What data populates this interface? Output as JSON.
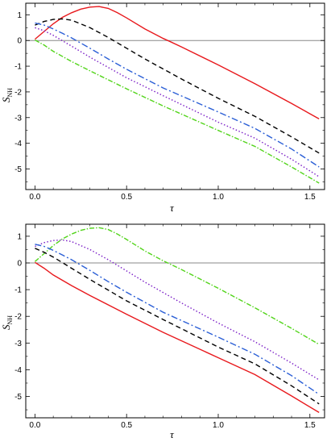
{
  "chart_data": [
    {
      "type": "line",
      "title": "",
      "xlabel": "τ",
      "ylabel": {
        "main": "S",
        "sub": "NH"
      },
      "xlim": [
        -0.05,
        1.58
      ],
      "ylim": [
        -5.8,
        1.45
      ],
      "xticks": [
        0.0,
        0.5,
        1.0,
        1.5
      ],
      "xtick_labels": [
        "0.0",
        "0.5",
        "1.0",
        "1.5"
      ],
      "yticks": [
        1,
        0,
        -1,
        -2,
        -3,
        -4,
        -5
      ],
      "ytick_labels": [
        "1",
        "0",
        "-1",
        "-2",
        "-3",
        "-4",
        "-5"
      ],
      "zero_line": true,
      "grid": false,
      "legend": "none",
      "series": [
        {
          "color": "#e8191d",
          "dash": "solid",
          "points": [
            [
              0,
              0.05
            ],
            [
              0.05,
              0.35
            ],
            [
              0.1,
              0.65
            ],
            [
              0.15,
              0.9
            ],
            [
              0.2,
              1.08
            ],
            [
              0.25,
              1.22
            ],
            [
              0.3,
              1.3
            ],
            [
              0.35,
              1.32
            ],
            [
              0.4,
              1.25
            ],
            [
              0.45,
              1.08
            ],
            [
              0.5,
              0.88
            ],
            [
              0.6,
              0.45
            ],
            [
              0.7,
              0.08
            ],
            [
              0.74,
              -0.05
            ],
            [
              0.8,
              -0.25
            ],
            [
              1.0,
              -0.95
            ],
            [
              1.2,
              -1.68
            ],
            [
              1.4,
              -2.45
            ],
            [
              1.55,
              -3.05
            ]
          ]
        },
        {
          "color": "#000000",
          "dash": "6,4",
          "points": [
            [
              0,
              0.6
            ],
            [
              0.05,
              0.74
            ],
            [
              0.1,
              0.82
            ],
            [
              0.15,
              0.84
            ],
            [
              0.2,
              0.79
            ],
            [
              0.3,
              0.5
            ],
            [
              0.4,
              0.12
            ],
            [
              0.5,
              -0.3
            ],
            [
              0.6,
              -0.72
            ],
            [
              0.8,
              -1.5
            ],
            [
              1.0,
              -2.25
            ],
            [
              1.2,
              -2.95
            ],
            [
              1.4,
              -3.75
            ],
            [
              1.55,
              -4.38
            ]
          ]
        },
        {
          "color": "#2b5fd6",
          "dash": "8,3,2,3",
          "points": [
            [
              0,
              0.68
            ],
            [
              0.05,
              0.6
            ],
            [
              0.1,
              0.45
            ],
            [
              0.15,
              0.28
            ],
            [
              0.2,
              0.1
            ],
            [
              0.3,
              -0.3
            ],
            [
              0.4,
              -0.72
            ],
            [
              0.5,
              -1.12
            ],
            [
              0.7,
              -1.85
            ],
            [
              1.0,
              -2.78
            ],
            [
              1.2,
              -3.42
            ],
            [
              1.4,
              -4.22
            ],
            [
              1.55,
              -4.92
            ]
          ]
        },
        {
          "color": "#7b1fc7",
          "dash": "1.5,2.5",
          "points": [
            [
              0,
              0.5
            ],
            [
              0.05,
              0.38
            ],
            [
              0.1,
              0.2
            ],
            [
              0.2,
              -0.22
            ],
            [
              0.3,
              -0.65
            ],
            [
              0.5,
              -1.45
            ],
            [
              0.7,
              -2.15
            ],
            [
              1.0,
              -3.18
            ],
            [
              1.2,
              -3.8
            ],
            [
              1.4,
              -4.62
            ],
            [
              1.55,
              -5.3
            ]
          ]
        },
        {
          "color": "#52d41a",
          "dash": "6,2,1.5,2",
          "points": [
            [
              0,
              0.02
            ],
            [
              0.05,
              -0.18
            ],
            [
              0.1,
              -0.42
            ],
            [
              0.2,
              -0.82
            ],
            [
              0.3,
              -1.18
            ],
            [
              0.5,
              -1.88
            ],
            [
              0.7,
              -2.55
            ],
            [
              1.0,
              -3.5
            ],
            [
              1.2,
              -4.12
            ],
            [
              1.4,
              -4.92
            ],
            [
              1.55,
              -5.55
            ]
          ]
        }
      ]
    },
    {
      "type": "line",
      "title": "",
      "xlabel": "τ",
      "ylabel": {
        "main": "S",
        "sub": "NH"
      },
      "xlim": [
        -0.05,
        1.58
      ],
      "ylim": [
        -5.8,
        1.45
      ],
      "xticks": [
        0.0,
        0.5,
        1.0,
        1.5
      ],
      "xtick_labels": [
        "0.0",
        "0.5",
        "1.0",
        "1.5"
      ],
      "yticks": [
        1,
        0,
        -1,
        -2,
        -3,
        -4,
        -5
      ],
      "ytick_labels": [
        "1",
        "0",
        "-1",
        "-2",
        "-3",
        "-4",
        "-5"
      ],
      "zero_line": true,
      "grid": false,
      "legend": "none",
      "series": [
        {
          "color": "#52d41a",
          "dash": "6,2,1.5,2",
          "points": [
            [
              0,
              0.05
            ],
            [
              0.05,
              0.35
            ],
            [
              0.1,
              0.65
            ],
            [
              0.15,
              0.9
            ],
            [
              0.2,
              1.08
            ],
            [
              0.25,
              1.22
            ],
            [
              0.3,
              1.3
            ],
            [
              0.35,
              1.32
            ],
            [
              0.4,
              1.25
            ],
            [
              0.45,
              1.08
            ],
            [
              0.5,
              0.88
            ],
            [
              0.6,
              0.45
            ],
            [
              0.7,
              0.08
            ],
            [
              0.74,
              -0.05
            ],
            [
              0.8,
              -0.25
            ],
            [
              1.0,
              -0.95
            ],
            [
              1.2,
              -1.68
            ],
            [
              1.4,
              -2.45
            ],
            [
              1.55,
              -3.05
            ]
          ]
        },
        {
          "color": "#7b1fc7",
          "dash": "1.5,2.5",
          "points": [
            [
              0,
              0.62
            ],
            [
              0.05,
              0.76
            ],
            [
              0.1,
              0.84
            ],
            [
              0.15,
              0.86
            ],
            [
              0.2,
              0.8
            ],
            [
              0.3,
              0.5
            ],
            [
              0.4,
              0.12
            ],
            [
              0.5,
              -0.3
            ],
            [
              0.6,
              -0.72
            ],
            [
              0.8,
              -1.5
            ],
            [
              1.0,
              -2.25
            ],
            [
              1.2,
              -2.95
            ],
            [
              1.4,
              -3.75
            ],
            [
              1.55,
              -4.38
            ]
          ]
        },
        {
          "color": "#2b5fd6",
          "dash": "8,3,2,3",
          "points": [
            [
              0,
              0.7
            ],
            [
              0.05,
              0.62
            ],
            [
              0.1,
              0.47
            ],
            [
              0.15,
              0.3
            ],
            [
              0.2,
              0.12
            ],
            [
              0.3,
              -0.28
            ],
            [
              0.4,
              -0.7
            ],
            [
              0.5,
              -1.1
            ],
            [
              0.7,
              -1.85
            ],
            [
              1.0,
              -2.78
            ],
            [
              1.2,
              -3.42
            ],
            [
              1.4,
              -4.22
            ],
            [
              1.55,
              -4.92
            ]
          ]
        },
        {
          "color": "#000000",
          "dash": "6,4",
          "points": [
            [
              0,
              0.55
            ],
            [
              0.05,
              0.4
            ],
            [
              0.1,
              0.22
            ],
            [
              0.2,
              -0.2
            ],
            [
              0.3,
              -0.62
            ],
            [
              0.5,
              -1.42
            ],
            [
              0.7,
              -2.12
            ],
            [
              1.0,
              -3.15
            ],
            [
              1.2,
              -3.78
            ],
            [
              1.4,
              -4.6
            ],
            [
              1.55,
              -5.28
            ]
          ]
        },
        {
          "color": "#e8191d",
          "dash": "solid",
          "points": [
            [
              0,
              0.02
            ],
            [
              0.05,
              -0.2
            ],
            [
              0.1,
              -0.45
            ],
            [
              0.2,
              -0.85
            ],
            [
              0.3,
              -1.22
            ],
            [
              0.5,
              -1.92
            ],
            [
              0.7,
              -2.6
            ],
            [
              1.0,
              -3.55
            ],
            [
              1.2,
              -4.18
            ],
            [
              1.4,
              -4.98
            ],
            [
              1.55,
              -5.6
            ]
          ]
        }
      ]
    }
  ]
}
